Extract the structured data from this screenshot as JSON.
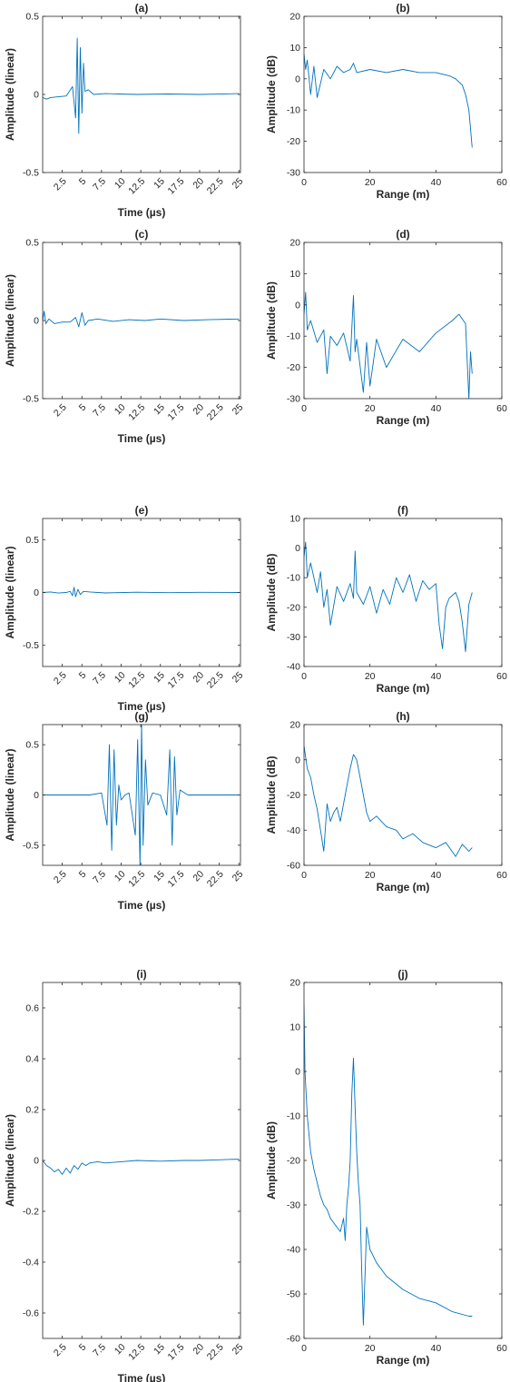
{
  "figure": {
    "background": "#ffffff",
    "trace_color": "#0072bd",
    "axis_color": "#262626"
  },
  "chart_data": [
    {
      "type": "line",
      "title": "(a)",
      "xlabel": "Time (µs)",
      "ylabel": "Amplitude (linear)",
      "xlim": [
        0,
        25.2
      ],
      "ylim": [
        -0.5,
        0.5
      ],
      "xticks": [
        2.5,
        5,
        7.5,
        10,
        12.5,
        15,
        17.5,
        20,
        22.5,
        25
      ],
      "xtick_labels": [
        "2.5",
        "5",
        "7.5",
        "10",
        "12.5",
        "15",
        "17.5",
        "20",
        "22.5",
        "25"
      ],
      "yticks": [
        -0.5,
        0,
        0.5
      ],
      "ytick_labels": [
        "-0.5",
        "0",
        "0.5"
      ],
      "rotated_xticks": true,
      "x": [
        0,
        0.5,
        1,
        2,
        3,
        3.8,
        4.2,
        4.4,
        4.6,
        4.8,
        5.0,
        5.2,
        5.4,
        5.8,
        6.5,
        8,
        12,
        16,
        20,
        25
      ],
      "y": [
        -0.02,
        -0.03,
        -0.02,
        -0.015,
        -0.01,
        0.05,
        -0.15,
        0.36,
        -0.25,
        0.3,
        -0.12,
        0.2,
        0.02,
        0.03,
        0.0,
        0.005,
        0.0,
        0.003,
        0.0,
        0.005
      ]
    },
    {
      "type": "line",
      "title": "(b)",
      "xlabel": "Range (m)",
      "ylabel": "Amplitude (dB)",
      "xlim": [
        0,
        60
      ],
      "ylim": [
        -30,
        20
      ],
      "xticks": [
        0,
        20,
        40,
        60
      ],
      "xtick_labels": [
        "0",
        "20",
        "40",
        "60"
      ],
      "yticks": [
        -30,
        -20,
        -10,
        0,
        10,
        20
      ],
      "ytick_labels": [
        "-30",
        "-20",
        "-10",
        "0",
        "10",
        "20"
      ],
      "rotated_xticks": false,
      "x": [
        0,
        0.5,
        1,
        2,
        3,
        4,
        6,
        8,
        10,
        12,
        14,
        15,
        16,
        20,
        25,
        30,
        35,
        40,
        44,
        46,
        48,
        49,
        50,
        51
      ],
      "y": [
        8,
        3,
        6,
        -5,
        4,
        -6,
        3,
        0,
        4,
        2,
        3,
        5,
        2,
        3,
        2,
        3,
        2,
        2,
        1,
        0,
        -2,
        -5,
        -10,
        -22
      ]
    },
    {
      "type": "line",
      "title": "(c)",
      "xlabel": "Time (µs)",
      "ylabel": "Amplitude (linear)",
      "xlim": [
        0,
        25.2
      ],
      "ylim": [
        -0.5,
        0.5
      ],
      "xticks": [
        2.5,
        5,
        7.5,
        10,
        12.5,
        15,
        17.5,
        20,
        22.5,
        25
      ],
      "xtick_labels": [
        "2.5",
        "5",
        "7.5",
        "10",
        "12.5",
        "15",
        "17.5",
        "20",
        "22.5",
        "25"
      ],
      "yticks": [
        -0.5,
        0,
        0.5
      ],
      "ytick_labels": [
        "-0.5",
        "0",
        "0.5"
      ],
      "rotated_xticks": true,
      "x": [
        0,
        0.2,
        0.4,
        0.8,
        1.5,
        2.5,
        3.5,
        4.2,
        4.6,
        5.0,
        5.4,
        5.8,
        7,
        9,
        11,
        13,
        15,
        18,
        21,
        25
      ],
      "y": [
        0.0,
        0.06,
        -0.02,
        0.01,
        -0.02,
        -0.01,
        -0.01,
        0.02,
        -0.04,
        0.05,
        -0.03,
        0.0,
        0.01,
        -0.005,
        0.005,
        0.0,
        0.01,
        0.0,
        0.005,
        0.01
      ]
    },
    {
      "type": "line",
      "title": "(d)",
      "xlabel": "Range (m)",
      "ylabel": "Amplitude (dB)",
      "xlim": [
        0,
        60
      ],
      "ylim": [
        -30,
        20
      ],
      "xticks": [
        0,
        20,
        40,
        60
      ],
      "xtick_labels": [
        "0",
        "20",
        "40",
        "60"
      ],
      "yticks": [
        -30,
        -20,
        -10,
        0,
        10,
        20
      ],
      "ytick_labels": [
        "-30",
        "-20",
        "-10",
        "0",
        "10",
        "20"
      ],
      "rotated_xticks": false,
      "x": [
        0,
        0.5,
        1,
        2,
        4,
        6,
        7,
        8,
        10,
        12,
        14,
        15,
        15.5,
        16,
        18,
        19,
        20,
        22,
        25,
        30,
        35,
        40,
        45,
        47,
        49,
        50,
        50.5,
        51
      ],
      "y": [
        -3,
        4,
        -8,
        -5,
        -12,
        -8,
        -22,
        -10,
        -13,
        -9,
        -18,
        3,
        -15,
        -11,
        -28,
        -12,
        -26,
        -11,
        -20,
        -11,
        -15,
        -9,
        -5,
        -3,
        -6,
        -30,
        -15,
        -22
      ]
    },
    {
      "type": "line",
      "title": "(e)",
      "xlabel": "Time (µs)",
      "ylabel": "Amplitude (linear)",
      "xlim": [
        0,
        25.2
      ],
      "ylim": [
        -0.7,
        0.7
      ],
      "xticks": [
        2.5,
        5,
        7.5,
        10,
        12.5,
        15,
        17.5,
        20,
        22.5,
        25
      ],
      "xtick_labels": [
        "2.5",
        "5",
        "7.5",
        "10",
        "12.5",
        "15",
        "17.5",
        "20",
        "22.5",
        "25"
      ],
      "yticks": [
        -0.5,
        0,
        0.5
      ],
      "ytick_labels": [
        "-0.5",
        "0",
        "0.5"
      ],
      "rotated_xticks": true,
      "x": [
        0,
        1,
        2,
        3,
        3.5,
        3.8,
        4.0,
        4.2,
        4.5,
        4.8,
        5.2,
        6,
        8,
        12,
        16,
        20,
        25
      ],
      "y": [
        0,
        0.005,
        -0.005,
        0.0,
        0.01,
        -0.03,
        0.05,
        -0.04,
        0.03,
        -0.02,
        0.01,
        0.005,
        -0.004,
        0.003,
        -0.002,
        0.002,
        0.0
      ]
    },
    {
      "type": "line",
      "title": "(f)",
      "xlabel": "Range (m)",
      "ylabel": "Amplitude (dB)",
      "xlim": [
        0,
        60
      ],
      "ylim": [
        -40,
        10
      ],
      "xticks": [
        0,
        20,
        40,
        60
      ],
      "xtick_labels": [
        "0",
        "20",
        "40",
        "60"
      ],
      "yticks": [
        -40,
        -30,
        -20,
        -10,
        0,
        10
      ],
      "ytick_labels": [
        "-40",
        "-30",
        "-20",
        "-10",
        "0",
        "10"
      ],
      "rotated_xticks": false,
      "x": [
        0,
        0.5,
        1,
        2,
        4,
        5,
        6,
        7,
        8,
        10,
        12,
        14,
        15,
        15.5,
        16,
        18,
        20,
        22,
        24,
        26,
        28,
        30,
        32,
        34,
        36,
        38,
        40,
        41,
        42,
        43,
        44,
        46,
        47,
        48,
        49,
        50,
        51
      ],
      "y": [
        -3,
        2,
        -10,
        -5,
        -15,
        -8,
        -20,
        -14,
        -26,
        -13,
        -18,
        -12,
        -17,
        -1,
        -15,
        -19,
        -13,
        -22,
        -14,
        -19,
        -10,
        -15,
        -9,
        -18,
        -11,
        -14,
        -12,
        -26,
        -34,
        -20,
        -17,
        -15,
        -18,
        -25,
        -35,
        -19,
        -15
      ]
    },
    {
      "type": "line",
      "title": "(g)",
      "xlabel": "Time (µs)",
      "ylabel": "Amplitude (linear)",
      "xlim": [
        0,
        25.2
      ],
      "ylim": [
        -0.7,
        0.7
      ],
      "xticks": [
        2.5,
        5,
        7.5,
        10,
        12.5,
        15,
        17.5,
        20,
        22.5,
        25
      ],
      "xtick_labels": [
        "2.5",
        "5",
        "7.5",
        "10",
        "12.5",
        "15",
        "17.5",
        "20",
        "22.5",
        "25"
      ],
      "yticks": [
        -0.5,
        0,
        0.5
      ],
      "ytick_labels": [
        "-0.5",
        "0",
        "0.5"
      ],
      "rotated_xticks": true,
      "x": [
        0,
        6,
        7.5,
        8.2,
        8.5,
        8.8,
        9.1,
        9.4,
        9.7,
        10.0,
        10.5,
        11,
        11.8,
        12.1,
        12.4,
        12.6,
        12.8,
        13.1,
        13.4,
        14,
        15,
        15.8,
        16.2,
        16.5,
        16.8,
        17.1,
        17.5,
        18.5,
        25
      ],
      "y": [
        0,
        0,
        0.02,
        -0.3,
        0.5,
        -0.55,
        0.45,
        -0.3,
        0.1,
        -0.05,
        0.0,
        0.02,
        -0.4,
        0.55,
        -0.72,
        0.72,
        -0.5,
        0.35,
        -0.1,
        0.02,
        0.0,
        -0.2,
        0.45,
        -0.5,
        0.38,
        -0.2,
        0.05,
        0.0,
        0.0
      ]
    },
    {
      "type": "line",
      "title": "(h)",
      "xlabel": "Range (m)",
      "ylabel": "Amplitude (dB)",
      "xlim": [
        0,
        60
      ],
      "ylim": [
        -60,
        20
      ],
      "xticks": [
        0,
        20,
        40,
        60
      ],
      "xtick_labels": [
        "0",
        "20",
        "40",
        "60"
      ],
      "yticks": [
        -60,
        -40,
        -20,
        0,
        20
      ],
      "ytick_labels": [
        "-60",
        "-40",
        "-20",
        "0",
        "20"
      ],
      "rotated_xticks": false,
      "x": [
        0,
        1,
        2,
        3,
        4,
        5,
        6,
        7,
        8,
        9,
        10,
        11,
        12,
        13,
        14,
        15,
        16,
        17,
        18,
        19,
        20,
        22,
        25,
        28,
        30,
        33,
        36,
        40,
        43,
        46,
        48,
        50,
        51
      ],
      "y": [
        8,
        -5,
        -10,
        -20,
        -28,
        -40,
        -52,
        -25,
        -35,
        -30,
        -27,
        -35,
        -25,
        -15,
        -5,
        3,
        0,
        -10,
        -20,
        -30,
        -35,
        -32,
        -38,
        -40,
        -45,
        -42,
        -47,
        -50,
        -47,
        -55,
        -48,
        -52,
        -50
      ]
    },
    {
      "type": "line",
      "title": "(i)",
      "xlabel": "Time (µs)",
      "ylabel": "Amplitude (linear)",
      "xlim": [
        0,
        25.2
      ],
      "ylim": [
        -0.7,
        0.7
      ],
      "xticks": [
        2.5,
        5,
        7.5,
        10,
        12.5,
        15,
        17.5,
        20,
        22.5,
        25
      ],
      "xtick_labels": [
        "2.5",
        "5",
        "7.5",
        "10",
        "12.5",
        "15",
        "17.5",
        "20",
        "22.5",
        "25"
      ],
      "yticks": [
        -0.6,
        -0.4,
        -0.2,
        0,
        0.2,
        0.4,
        0.6
      ],
      "ytick_labels": [
        "-0.6",
        "-0.4",
        "-0.2",
        "0",
        "0.2",
        "0.4",
        "0.6"
      ],
      "rotated_xticks": true,
      "x": [
        0,
        0.5,
        1,
        1.5,
        2,
        2.5,
        3,
        3.5,
        4,
        4.5,
        5,
        5.5,
        6,
        7,
        8,
        10,
        12,
        15,
        18,
        20,
        22,
        25
      ],
      "y": [
        0.0,
        -0.02,
        -0.03,
        -0.045,
        -0.035,
        -0.055,
        -0.03,
        -0.05,
        -0.02,
        -0.035,
        -0.01,
        -0.02,
        -0.01,
        -0.005,
        -0.01,
        -0.005,
        0.0,
        -0.003,
        0.0,
        0.0,
        0.002,
        0.005
      ]
    },
    {
      "type": "line",
      "title": "(j)",
      "xlabel": "Range (m)",
      "ylabel": "Amplitude (dB)",
      "xlim": [
        0,
        60
      ],
      "ylim": [
        -60,
        20
      ],
      "xticks": [
        0,
        20,
        40,
        60
      ],
      "xtick_labels": [
        "0",
        "20",
        "40",
        "60"
      ],
      "yticks": [
        -60,
        -50,
        -40,
        -30,
        -20,
        -10,
        0,
        10,
        20
      ],
      "ytick_labels": [
        "-60",
        "-50",
        "-40",
        "-30",
        "-20",
        "-10",
        "0",
        "10",
        "20"
      ],
      "rotated_xticks": false,
      "x": [
        0,
        0.3,
        1,
        2,
        3,
        4,
        5,
        6,
        7,
        8,
        9,
        10,
        11,
        12,
        12.5,
        13,
        13.5,
        14,
        14.5,
        15,
        15.5,
        16,
        16.5,
        17,
        17.5,
        18,
        19,
        20,
        22,
        25,
        30,
        35,
        40,
        45,
        50,
        51
      ],
      "y": [
        15,
        0,
        -10,
        -18,
        -22,
        -25,
        -28,
        -30,
        -31,
        -33,
        -34,
        -35,
        -36,
        -33,
        -38,
        -30,
        -26,
        -20,
        -5,
        3,
        -8,
        -18,
        -25,
        -30,
        -45,
        -57,
        -35,
        -40,
        -43,
        -46,
        -49,
        -51,
        -52,
        -54,
        -55,
        -55
      ]
    }
  ]
}
